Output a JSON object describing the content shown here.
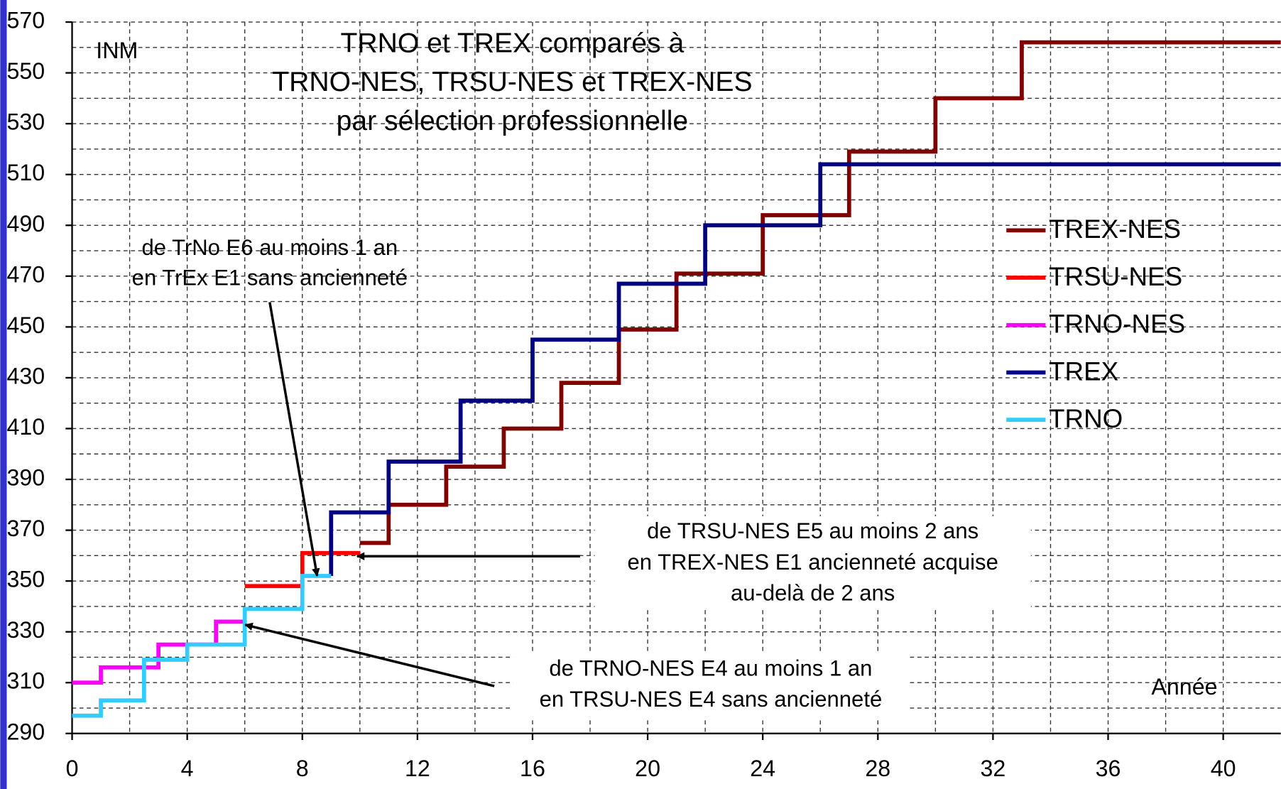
{
  "chart_data": {
    "type": "step",
    "title": [
      "TRNO et TREX comparés à",
      "TRNO-NES, TRSU-NES et TREX-NES",
      "par sélection professionnelle"
    ],
    "y_label": "INM",
    "x_label": "Année",
    "xlim": [
      0,
      42
    ],
    "ylim": [
      290,
      570
    ],
    "xticks": [
      0,
      4,
      8,
      12,
      16,
      20,
      24,
      28,
      32,
      36,
      40
    ],
    "yticks": [
      290,
      310,
      330,
      350,
      370,
      390,
      410,
      430,
      450,
      470,
      490,
      510,
      530,
      550,
      570
    ],
    "grid": true,
    "legend": "right",
    "series": [
      {
        "name": "TREX-NES",
        "color": "#800000",
        "x": [
          10,
          11,
          13,
          15,
          17,
          19,
          21,
          24,
          27,
          30,
          33,
          42
        ],
        "values": [
          365,
          380,
          395,
          410,
          428,
          449,
          471,
          494,
          519,
          540,
          562,
          562
        ]
      },
      {
        "name": "TRSU-NES",
        "color": "#ff0000",
        "x": [
          6,
          8,
          10
        ],
        "values": [
          348,
          361,
          361
        ]
      },
      {
        "name": "TRNO-NES",
        "color": "#ff00ff",
        "x": [
          0,
          1,
          3,
          5,
          6
        ],
        "values": [
          310,
          316,
          325,
          334,
          334
        ]
      },
      {
        "name": "TREX",
        "color": "#000080",
        "x": [
          9,
          9,
          11,
          13.5,
          16,
          19,
          22,
          26,
          42
        ],
        "values": [
          352,
          377,
          397,
          421,
          445,
          467,
          490,
          514,
          514
        ]
      },
      {
        "name": "TRNO",
        "color": "#33ccff",
        "x": [
          0,
          1,
          2.5,
          4,
          6,
          8,
          9
        ],
        "values": [
          297,
          303,
          319,
          325,
          339,
          352,
          352
        ]
      }
    ],
    "annotations": [
      [
        "de TrNo E6 au moins 1 an",
        "en TrEx E1 sans ancienneté"
      ],
      [
        "de TRSU-NES E5 au moins 2 ans",
        "en TREX-NES E1 ancienneté acquise",
        "au-delà de 2 ans"
      ],
      [
        "de TRNO-NES E4 au moins 1 an",
        "en TRSU-NES E4 sans ancienneté"
      ]
    ]
  }
}
